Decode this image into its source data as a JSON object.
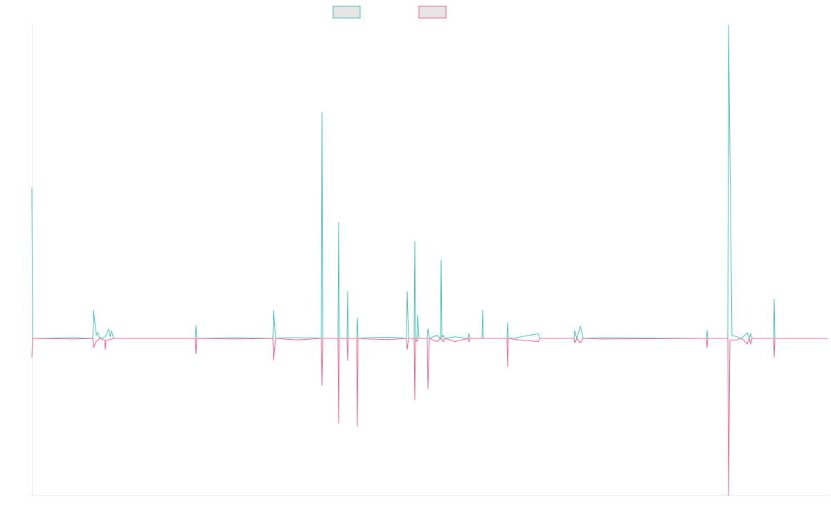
{
  "chart_data": {
    "type": "line",
    "title": "",
    "xlabel": "",
    "ylabel": "",
    "grid": false,
    "legend_position": "top-center",
    "xlim": [
      0,
      1150
    ],
    "ylim": [
      -1,
      1
    ],
    "colors": {
      "series_a": "#4bbfb6",
      "series_b": "#f0628c",
      "axis": "#e6e6e6",
      "legend_fill": "#e6e6e6"
    },
    "series": [
      {
        "key": "a",
        "color": "#4bbfb6",
        "points": [
          [
            0,
            0.48
          ],
          [
            1,
            0
          ],
          [
            60,
            0.002
          ],
          [
            88,
            0
          ],
          [
            89,
            0.09
          ],
          [
            93,
            0.01
          ],
          [
            95,
            0.02
          ],
          [
            98,
            0
          ],
          [
            106,
            0.005
          ],
          [
            111,
            0.03
          ],
          [
            113,
            0.005
          ],
          [
            115,
            0.025
          ],
          [
            118,
            0
          ],
          [
            236,
            0
          ],
          [
            237,
            0.04
          ],
          [
            238,
            0
          ],
          [
            292,
            0.002
          ],
          [
            348,
            0
          ],
          [
            349,
            0.09
          ],
          [
            352,
            0
          ],
          [
            363,
            0.002
          ],
          [
            383,
            0.002
          ],
          [
            406,
            0.002
          ],
          [
            418,
            0
          ],
          [
            419,
            0.72
          ],
          [
            420,
            0
          ],
          [
            442,
            0
          ],
          [
            443,
            0.37
          ],
          [
            444,
            0
          ],
          [
            455,
            0
          ],
          [
            456,
            0.15
          ],
          [
            457,
            0
          ],
          [
            469,
            0
          ],
          [
            470,
            0.065
          ],
          [
            471,
            0
          ],
          [
            484,
            0.002
          ],
          [
            516,
            0.004
          ],
          [
            541,
            0
          ],
          [
            542,
            0.15
          ],
          [
            544,
            0
          ],
          [
            552,
            0
          ],
          [
            553,
            0.31
          ],
          [
            554,
            0
          ],
          [
            556,
            0
          ],
          [
            557,
            0.075
          ],
          [
            559,
            0
          ],
          [
            571,
            0
          ],
          [
            572,
            0.03
          ],
          [
            574,
            0
          ],
          [
            585,
            0.01
          ],
          [
            590,
            0
          ],
          [
            591,
            0.25
          ],
          [
            592,
            0
          ],
          [
            594,
            0.01
          ],
          [
            596,
            0
          ],
          [
            611,
            0.005
          ],
          [
            630,
            0
          ],
          [
            631,
            0.015
          ],
          [
            633,
            0
          ],
          [
            650,
            0
          ],
          [
            651,
            0.09
          ],
          [
            652,
            0
          ],
          [
            686,
            0
          ],
          [
            687,
            0.05
          ],
          [
            688,
            0
          ],
          [
            699,
            0.002
          ],
          [
            731,
            0.015
          ],
          [
            734,
            0
          ],
          [
            783,
            0
          ],
          [
            784,
            0.025
          ],
          [
            787,
            0
          ],
          [
            792,
            0.04
          ],
          [
            796,
            0
          ],
          [
            822,
            0.002
          ],
          [
            974,
            0
          ],
          [
            975,
            0.025
          ],
          [
            976,
            0
          ],
          [
            1005,
            0
          ],
          [
            1006,
            1.0
          ],
          [
            1011,
            0.01
          ],
          [
            1018,
            0.005
          ],
          [
            1022,
            0.002
          ],
          [
            1025,
            0
          ],
          [
            1033,
            0.018
          ],
          [
            1036,
            0
          ],
          [
            1038,
            0.015
          ],
          [
            1040,
            0
          ],
          [
            1071,
            0
          ],
          [
            1072,
            0.125
          ],
          [
            1073,
            0
          ],
          [
            1150,
            0
          ]
        ]
      },
      {
        "key": "b",
        "color": "#f0628c",
        "points": [
          [
            0,
            -0.06
          ],
          [
            1,
            0
          ],
          [
            60,
            -0.002
          ],
          [
            88,
            0
          ],
          [
            89,
            -0.03
          ],
          [
            93,
            -0.01
          ],
          [
            98,
            0
          ],
          [
            105,
            -0.005
          ],
          [
            106,
            -0.035
          ],
          [
            107,
            -0.005
          ],
          [
            111,
            -0.005
          ],
          [
            118,
            0
          ],
          [
            236,
            0
          ],
          [
            237,
            -0.05
          ],
          [
            238,
            0
          ],
          [
            292,
            -0.002
          ],
          [
            348,
            0
          ],
          [
            349,
            -0.07
          ],
          [
            352,
            0
          ],
          [
            363,
            -0.002
          ],
          [
            383,
            -0.005
          ],
          [
            406,
            -0.002
          ],
          [
            418,
            0
          ],
          [
            419,
            -0.15
          ],
          [
            420,
            0
          ],
          [
            442,
            0
          ],
          [
            443,
            -0.27
          ],
          [
            444,
            0
          ],
          [
            455,
            0
          ],
          [
            456,
            -0.07
          ],
          [
            457,
            0
          ],
          [
            469,
            0
          ],
          [
            470,
            -0.28
          ],
          [
            471,
            0
          ],
          [
            484,
            -0.002
          ],
          [
            516,
            -0.004
          ],
          [
            541,
            0
          ],
          [
            542,
            -0.035
          ],
          [
            544,
            0
          ],
          [
            552,
            0
          ],
          [
            553,
            -0.195
          ],
          [
            554,
            0
          ],
          [
            556,
            -0.01
          ],
          [
            557,
            0
          ],
          [
            571,
            0
          ],
          [
            572,
            -0.16
          ],
          [
            574,
            0
          ],
          [
            585,
            -0.01
          ],
          [
            590,
            0
          ],
          [
            594,
            -0.01
          ],
          [
            596,
            0
          ],
          [
            611,
            -0.01
          ],
          [
            630,
            0
          ],
          [
            631,
            -0.01
          ],
          [
            633,
            0
          ],
          [
            686,
            0
          ],
          [
            687,
            -0.09
          ],
          [
            688,
            0
          ],
          [
            699,
            -0.004
          ],
          [
            731,
            -0.01
          ],
          [
            734,
            0
          ],
          [
            783,
            0
          ],
          [
            784,
            -0.015
          ],
          [
            787,
            0
          ],
          [
            792,
            -0.015
          ],
          [
            796,
            0
          ],
          [
            822,
            -0.002
          ],
          [
            974,
            0
          ],
          [
            975,
            -0.03
          ],
          [
            976,
            0
          ],
          [
            1005,
            0
          ],
          [
            1006,
            -0.5
          ],
          [
            1008,
            -0.005
          ],
          [
            1018,
            -0.005
          ],
          [
            1022,
            -0.002
          ],
          [
            1025,
            0
          ],
          [
            1033,
            -0.018
          ],
          [
            1036,
            0
          ],
          [
            1038,
            -0.018
          ],
          [
            1040,
            0
          ],
          [
            1071,
            0
          ],
          [
            1072,
            -0.06
          ],
          [
            1073,
            0
          ],
          [
            1150,
            0
          ]
        ]
      }
    ]
  }
}
